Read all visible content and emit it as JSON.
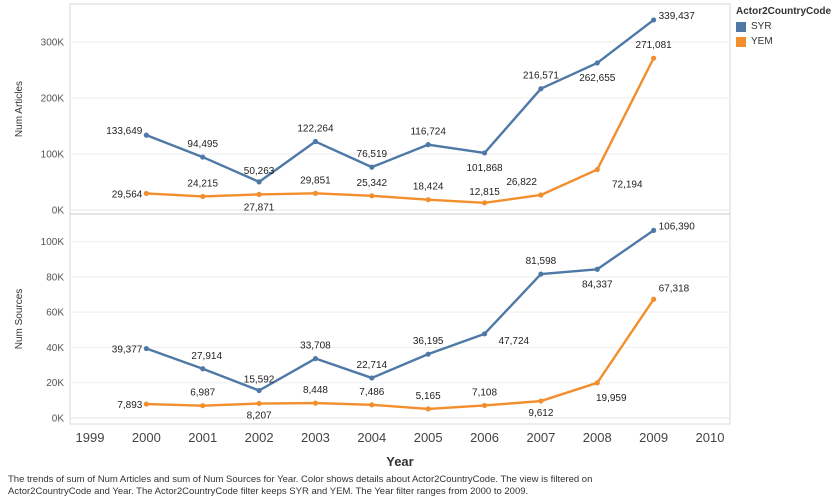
{
  "chart_data": {
    "type": "line",
    "x": [
      2000,
      2001,
      2002,
      2003,
      2004,
      2005,
      2006,
      2007,
      2008,
      2009
    ],
    "xlabel": "Year",
    "xticks": [
      "1999",
      "2000",
      "2001",
      "2002",
      "2003",
      "2004",
      "2005",
      "2006",
      "2007",
      "2008",
      "2009",
      "2010"
    ],
    "xlim": [
      1999,
      2010
    ],
    "panels": [
      {
        "ylabel": "Num Articles",
        "ylim": [
          0,
          350000
        ],
        "yticks": [
          0,
          100000,
          200000,
          300000
        ],
        "ytick_labels": [
          "0K",
          "100K",
          "200K",
          "300K"
        ],
        "series": [
          {
            "name": "SYR",
            "color": "#4e79a7",
            "values": [
              133649,
              94495,
              50263,
              122264,
              76519,
              116724,
              101868,
              216571,
              262655,
              339437
            ],
            "labels": [
              "133,649",
              "94,495",
              "50,263",
              "122,264",
              "76,519",
              "116,724",
              "101,868",
              "216,571",
              "262,655",
              "339,437"
            ]
          },
          {
            "name": "YEM",
            "color": "#f28e2b",
            "values": [
              29564,
              24215,
              27871,
              29851,
              25342,
              18424,
              12815,
              26822,
              72194,
              271081
            ],
            "labels": [
              "29,564",
              "24,215",
              "27,871",
              "29,851",
              "25,342",
              "18,424",
              "12,815",
              "26,822",
              "72,194",
              "271,081"
            ]
          }
        ]
      },
      {
        "ylabel": "Num Sources",
        "ylim": [
          0,
          110000
        ],
        "yticks": [
          0,
          20000,
          40000,
          60000,
          80000,
          100000
        ],
        "ytick_labels": [
          "0K",
          "20K",
          "40K",
          "60K",
          "80K",
          "100K"
        ],
        "series": [
          {
            "name": "SYR",
            "color": "#4e79a7",
            "values": [
              39377,
              27914,
              15592,
              33708,
              22714,
              36195,
              47724,
              81598,
              84337,
              106390
            ],
            "labels": [
              "39,377",
              "27,914",
              "15,592",
              "33,708",
              "22,714",
              "36,195",
              "47,724",
              "81,598",
              "84,337",
              "106,390"
            ]
          },
          {
            "name": "YEM",
            "color": "#f28e2b",
            "values": [
              7893,
              6987,
              8207,
              8448,
              7486,
              5165,
              7108,
              9612,
              19959,
              67318
            ],
            "labels": [
              "7,893",
              "6,987",
              "8,207",
              "8,448",
              "7,486",
              "5,165",
              "7,108",
              "9,612",
              "19,959",
              "67,318"
            ]
          }
        ]
      }
    ],
    "legend": {
      "title": "Actor2CountryCode",
      "placement": "top-right",
      "items": [
        {
          "name": "SYR",
          "color": "#4e79a7"
        },
        {
          "name": "YEM",
          "color": "#f28e2b"
        }
      ]
    }
  },
  "caption": {
    "line1": "The trends of sum of Num Articles and sum of Num Sources for Year.  Color shows details about Actor2CountryCode. The view is filtered on",
    "line2": "Actor2CountryCode and Year. The Actor2CountryCode filter keeps SYR and YEM. The Year filter ranges from 2000 to 2009."
  }
}
